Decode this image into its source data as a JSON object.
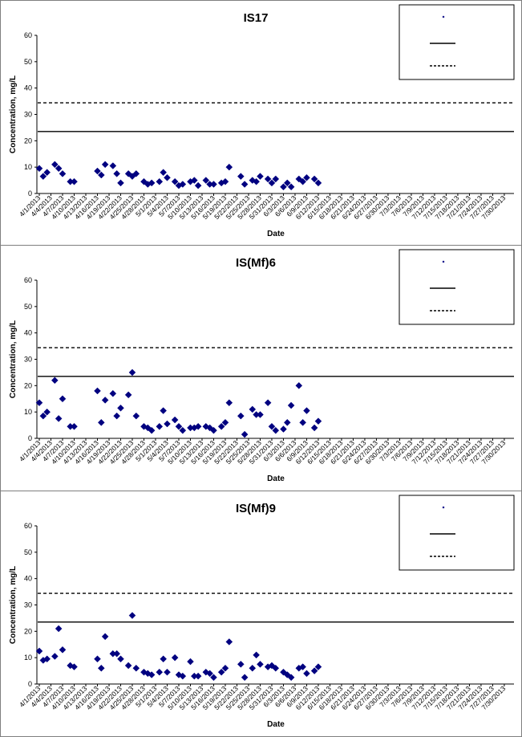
{
  "chart_data": [
    {
      "type": "scatter",
      "title": "IS17",
      "xlabel": "Date",
      "ylabel": "Concentration, mg/L",
      "ylim": [
        0,
        60
      ],
      "yticks": [
        0,
        10,
        20,
        30,
        40,
        50,
        60
      ],
      "x_ticks": [
        "4/1/2013",
        "4/4/2013",
        "4/7/2013",
        "4/10/2013",
        "4/13/2013",
        "4/16/2013",
        "4/19/2013",
        "4/22/2013",
        "4/25/2013",
        "4/28/2013",
        "5/1/2013",
        "5/4/2013",
        "5/7/2013",
        "5/10/2013",
        "5/13/2013",
        "5/16/2013",
        "5/19/2013",
        "5/22/2013",
        "5/25/2013",
        "5/28/2013",
        "5/31/2013",
        "6/3/2013",
        "6/6/2013",
        "6/9/2013",
        "6/12/2013",
        "6/15/2013",
        "6/18/2013",
        "6/21/2013",
        "6/24/2013",
        "6/27/2013",
        "6/30/2013",
        "7/3/2013",
        "7/6/2013",
        "7/9/2013",
        "7/12/2013",
        "7/15/2013",
        "7/18/2013",
        "7/21/2013",
        "7/24/2013",
        "7/27/2013",
        "7/30/2013"
      ],
      "legend": {
        "position": "top-right",
        "items": [
          {
            "marker": "diamond",
            "color": "#000080",
            "label": ""
          },
          {
            "marker": "solid-line",
            "label": ""
          },
          {
            "marker": "dashed-line",
            "label": ""
          }
        ]
      },
      "reference_lines": [
        {
          "style": "solid",
          "y": 23.5
        },
        {
          "style": "dashed",
          "y": 34.4
        }
      ],
      "series": [
        {
          "color": "#000080",
          "marker": "diamond",
          "points": [
            [
              "4/1/2013",
              9.5
            ],
            [
              "4/2/2013",
              6.5
            ],
            [
              "4/3/2013",
              8
            ],
            [
              "4/5/2013",
              11
            ],
            [
              "4/6/2013",
              9.5
            ],
            [
              "4/7/2013",
              7.5
            ],
            [
              "4/9/2013",
              4.5
            ],
            [
              "4/10/2013",
              4.5
            ],
            [
              "4/16/2013",
              8.5
            ],
            [
              "4/17/2013",
              7
            ],
            [
              "4/18/2013",
              11
            ],
            [
              "4/20/2013",
              10.5
            ],
            [
              "4/21/2013",
              7.5
            ],
            [
              "4/22/2013",
              4
            ],
            [
              "4/24/2013",
              7.5
            ],
            [
              "4/25/2013",
              6.5
            ],
            [
              "4/26/2013",
              7.5
            ],
            [
              "4/28/2013",
              4.5
            ],
            [
              "4/29/2013",
              3.5
            ],
            [
              "4/30/2013",
              4
            ],
            [
              "5/2/2013",
              4.5
            ],
            [
              "5/3/2013",
              8
            ],
            [
              "5/4/2013",
              6
            ],
            [
              "5/6/2013",
              4.5
            ],
            [
              "5/7/2013",
              3
            ],
            [
              "5/8/2013",
              3.5
            ],
            [
              "5/10/2013",
              4.5
            ],
            [
              "5/11/2013",
              5
            ],
            [
              "5/12/2013",
              3
            ],
            [
              "5/14/2013",
              5
            ],
            [
              "5/15/2013",
              3.5
            ],
            [
              "5/16/2013",
              3.5
            ],
            [
              "5/18/2013",
              4
            ],
            [
              "5/19/2013",
              4.5
            ],
            [
              "5/20/2013",
              10
            ],
            [
              "5/23/2013",
              6.5
            ],
            [
              "5/24/2013",
              3.5
            ],
            [
              "5/26/2013",
              5
            ],
            [
              "5/27/2013",
              4.5
            ],
            [
              "5/28/2013",
              6.5
            ],
            [
              "5/30/2013",
              5.5
            ],
            [
              "5/31/2013",
              4
            ],
            [
              "6/1/2013",
              5.5
            ],
            [
              "6/3/2013",
              2.5
            ],
            [
              "6/4/2013",
              4
            ],
            [
              "6/5/2013",
              2.5
            ],
            [
              "6/7/2013",
              5.5
            ],
            [
              "6/8/2013",
              4.5
            ],
            [
              "6/9/2013",
              6
            ],
            [
              "6/11/2013",
              5.5
            ],
            [
              "6/12/2013",
              4
            ]
          ]
        }
      ]
    },
    {
      "type": "scatter",
      "title": "IS(Mf)6",
      "xlabel": "Date",
      "ylabel": "Concentration, mg/L",
      "ylim": [
        0,
        60
      ],
      "yticks": [
        0,
        10,
        20,
        30,
        40,
        50,
        60
      ],
      "x_ticks": [
        "4/1/2013",
        "4/4/2013",
        "4/7/2013",
        "4/10/2013",
        "4/13/2013",
        "4/16/2013",
        "4/19/2013",
        "4/22/2013",
        "4/25/2013",
        "4/28/2013",
        "5/1/2013",
        "5/4/2013",
        "5/7/2013",
        "5/10/2013",
        "5/13/2013",
        "5/16/2013",
        "5/19/2013",
        "5/22/2013",
        "5/25/2013",
        "5/28/2013",
        "5/31/2013",
        "6/3/2013",
        "6/6/2013",
        "6/9/2013",
        "6/12/2013",
        "6/15/2013",
        "6/18/2013",
        "6/21/2013",
        "6/24/2013",
        "6/27/2013",
        "6/30/2013",
        "7/3/2013",
        "7/6/2013",
        "7/9/2013",
        "7/12/2013",
        "7/15/2013",
        "7/18/2013",
        "7/21/2013",
        "7/24/2013",
        "7/27/2013",
        "7/30/2013"
      ],
      "legend": {
        "position": "top-right",
        "items": [
          {
            "marker": "diamond",
            "color": "#000080",
            "label": ""
          },
          {
            "marker": "solid-line",
            "label": ""
          },
          {
            "marker": "dashed-line",
            "label": ""
          }
        ]
      },
      "reference_lines": [
        {
          "style": "solid",
          "y": 23.5
        },
        {
          "style": "dashed",
          "y": 34.4
        }
      ],
      "series": [
        {
          "color": "#000080",
          "marker": "diamond",
          "points": [
            [
              "4/1/2013",
              13.5
            ],
            [
              "4/2/2013",
              8.5
            ],
            [
              "4/3/2013",
              10
            ],
            [
              "4/5/2013",
              22
            ],
            [
              "4/6/2013",
              7.5
            ],
            [
              "4/7/2013",
              15
            ],
            [
              "4/9/2013",
              4.5
            ],
            [
              "4/10/2013",
              4.5
            ],
            [
              "4/16/2013",
              18
            ],
            [
              "4/17/2013",
              6
            ],
            [
              "4/18/2013",
              14.5
            ],
            [
              "4/20/2013",
              17
            ],
            [
              "4/21/2013",
              8.5
            ],
            [
              "4/22/2013",
              11.5
            ],
            [
              "4/24/2013",
              16.5
            ],
            [
              "4/25/2013",
              25
            ],
            [
              "4/26/2013",
              8.5
            ],
            [
              "4/28/2013",
              4.5
            ],
            [
              "4/29/2013",
              4
            ],
            [
              "4/30/2013",
              3
            ],
            [
              "5/2/2013",
              4.5
            ],
            [
              "5/3/2013",
              10.5
            ],
            [
              "5/4/2013",
              5.5
            ],
            [
              "5/6/2013",
              7
            ],
            [
              "5/7/2013",
              4.5
            ],
            [
              "5/8/2013",
              3
            ],
            [
              "5/10/2013",
              4
            ],
            [
              "5/11/2013",
              4
            ],
            [
              "5/12/2013",
              4.5
            ],
            [
              "5/14/2013",
              4.5
            ],
            [
              "5/15/2013",
              4
            ],
            [
              "5/16/2013",
              3
            ],
            [
              "5/18/2013",
              4.5
            ],
            [
              "5/19/2013",
              6
            ],
            [
              "5/20/2013",
              13.5
            ],
            [
              "5/23/2013",
              8.5
            ],
            [
              "5/24/2013",
              1.5
            ],
            [
              "5/26/2013",
              11
            ],
            [
              "5/27/2013",
              9
            ],
            [
              "5/28/2013",
              9
            ],
            [
              "5/30/2013",
              13.5
            ],
            [
              "5/31/2013",
              4.5
            ],
            [
              "6/1/2013",
              3
            ],
            [
              "6/3/2013",
              3.5
            ],
            [
              "6/4/2013",
              6
            ],
            [
              "6/5/2013",
              12.5
            ],
            [
              "6/7/2013",
              20
            ],
            [
              "6/8/2013",
              6
            ],
            [
              "6/9/2013",
              10.5
            ],
            [
              "6/11/2013",
              4
            ],
            [
              "6/12/2013",
              6.5
            ]
          ]
        }
      ]
    },
    {
      "type": "scatter",
      "title": "IS(Mf)9",
      "xlabel": "Date",
      "ylabel": "Concentration, mg/L",
      "ylim": [
        0,
        60
      ],
      "yticks": [
        0,
        10,
        20,
        30,
        40,
        50,
        60
      ],
      "x_ticks": [
        "4/1/2013",
        "4/4/2013",
        "4/7/2013",
        "4/10/2013",
        "4/13/2013",
        "4/16/2013",
        "4/19/2013",
        "4/22/2013",
        "4/25/2013",
        "4/28/2013",
        "5/1/2013",
        "5/4/2013",
        "5/7/2013",
        "5/10/2013",
        "5/13/2013",
        "5/16/2013",
        "5/19/2013",
        "5/22/2013",
        "5/25/2013",
        "5/28/2013",
        "5/31/2013",
        "6/3/2013",
        "6/6/2013",
        "6/9/2013",
        "6/12/2013",
        "6/15/2013",
        "6/18/2013",
        "6/21/2013",
        "6/24/2013",
        "6/27/2013",
        "6/30/2013",
        "7/3/2013",
        "7/6/2013",
        "7/9/2013",
        "7/12/2013",
        "7/15/2013",
        "7/18/2013",
        "7/21/2013",
        "7/24/2013",
        "7/27/2013",
        "7/30/2013"
      ],
      "legend": {
        "position": "top-right",
        "items": [
          {
            "marker": "diamond",
            "color": "#000080",
            "label": ""
          },
          {
            "marker": "solid-line",
            "label": ""
          },
          {
            "marker": "dashed-line",
            "label": ""
          }
        ]
      },
      "reference_lines": [
        {
          "style": "solid",
          "y": 23.5
        },
        {
          "style": "dashed",
          "y": 34.4
        }
      ],
      "series": [
        {
          "color": "#000080",
          "marker": "diamond",
          "points": [
            [
              "4/1/2013",
              12.5
            ],
            [
              "4/2/2013",
              9
            ],
            [
              "4/3/2013",
              9.5
            ],
            [
              "4/5/2013",
              10.5
            ],
            [
              "4/6/2013",
              21
            ],
            [
              "4/7/2013",
              13
            ],
            [
              "4/9/2013",
              7
            ],
            [
              "4/10/2013",
              6.5
            ],
            [
              "4/16/2013",
              9.5
            ],
            [
              "4/17/2013",
              6
            ],
            [
              "4/18/2013",
              18
            ],
            [
              "4/20/2013",
              11.5
            ],
            [
              "4/21/2013",
              11.5
            ],
            [
              "4/22/2013",
              9.5
            ],
            [
              "4/24/2013",
              7
            ],
            [
              "4/25/2013",
              26
            ],
            [
              "4/26/2013",
              6
            ],
            [
              "4/28/2013",
              4.5
            ],
            [
              "4/29/2013",
              4
            ],
            [
              "4/30/2013",
              3.5
            ],
            [
              "5/2/2013",
              4.5
            ],
            [
              "5/3/2013",
              9.5
            ],
            [
              "5/4/2013",
              4.5
            ],
            [
              "5/6/2013",
              10
            ],
            [
              "5/7/2013",
              3.5
            ],
            [
              "5/8/2013",
              3
            ],
            [
              "5/10/2013",
              8.5
            ],
            [
              "5/11/2013",
              3
            ],
            [
              "5/12/2013",
              3
            ],
            [
              "5/14/2013",
              4.5
            ],
            [
              "5/15/2013",
              4
            ],
            [
              "5/16/2013",
              2.5
            ],
            [
              "5/18/2013",
              4.5
            ],
            [
              "5/19/2013",
              6
            ],
            [
              "5/20/2013",
              16
            ],
            [
              "5/23/2013",
              7.5
            ],
            [
              "5/24/2013",
              2.5
            ],
            [
              "5/26/2013",
              6
            ],
            [
              "5/27/2013",
              11
            ],
            [
              "5/28/2013",
              7.5
            ],
            [
              "5/30/2013",
              6.5
            ],
            [
              "5/31/2013",
              7
            ],
            [
              "6/1/2013",
              6
            ],
            [
              "6/3/2013",
              4.5
            ],
            [
              "6/4/2013",
              3.5
            ],
            [
              "6/5/2013",
              2.5
            ],
            [
              "6/7/2013",
              6
            ],
            [
              "6/8/2013",
              6.5
            ],
            [
              "6/9/2013",
              4
            ],
            [
              "6/11/2013",
              5
            ],
            [
              "6/12/2013",
              6.5
            ]
          ]
        }
      ]
    }
  ]
}
